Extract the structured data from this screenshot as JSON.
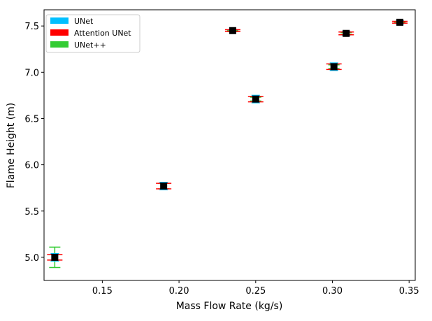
{
  "chart_data": {
    "type": "scatter",
    "title": "",
    "xlabel": "Mass Flow Rate (kg/s)",
    "ylabel": "Flame Height (m)",
    "xlim": [
      0.112,
      0.354
    ],
    "ylim": [
      4.75,
      7.675
    ],
    "x_ticks": [
      0.15,
      0.2,
      0.25,
      0.3,
      0.35
    ],
    "x_tick_labels": [
      "0.15",
      "0.20",
      "0.25",
      "0.30",
      "0.35"
    ],
    "y_ticks": [
      5.0,
      5.5,
      6.0,
      6.5,
      7.0,
      7.5
    ],
    "y_tick_labels": [
      "5.0",
      "5.5",
      "6.0",
      "6.5",
      "7.0",
      "7.5"
    ],
    "grid": false,
    "legend_position": "top-left",
    "marker": "black square (mean)",
    "x": [
      0.119,
      0.19,
      0.235,
      0.25,
      0.301,
      0.309,
      0.344
    ],
    "mean": [
      5.0,
      5.77,
      7.45,
      6.71,
      7.06,
      7.42,
      7.54
    ],
    "series": [
      {
        "name": "UNet",
        "color": "#00BFFF",
        "err": [
          0.04,
          0.04,
          0.01,
          0.04,
          0.04,
          0.02,
          0.015
        ]
      },
      {
        "name": "Attention UNet",
        "color": "#FF0000",
        "err": [
          0.03,
          0.03,
          0.01,
          0.03,
          0.03,
          0.015,
          0.01
        ]
      },
      {
        "name": "UNet++",
        "color": "#33CC33",
        "err": [
          0.11,
          0.03,
          0.005,
          0.02,
          0.02,
          0.01,
          0.005
        ]
      }
    ]
  }
}
